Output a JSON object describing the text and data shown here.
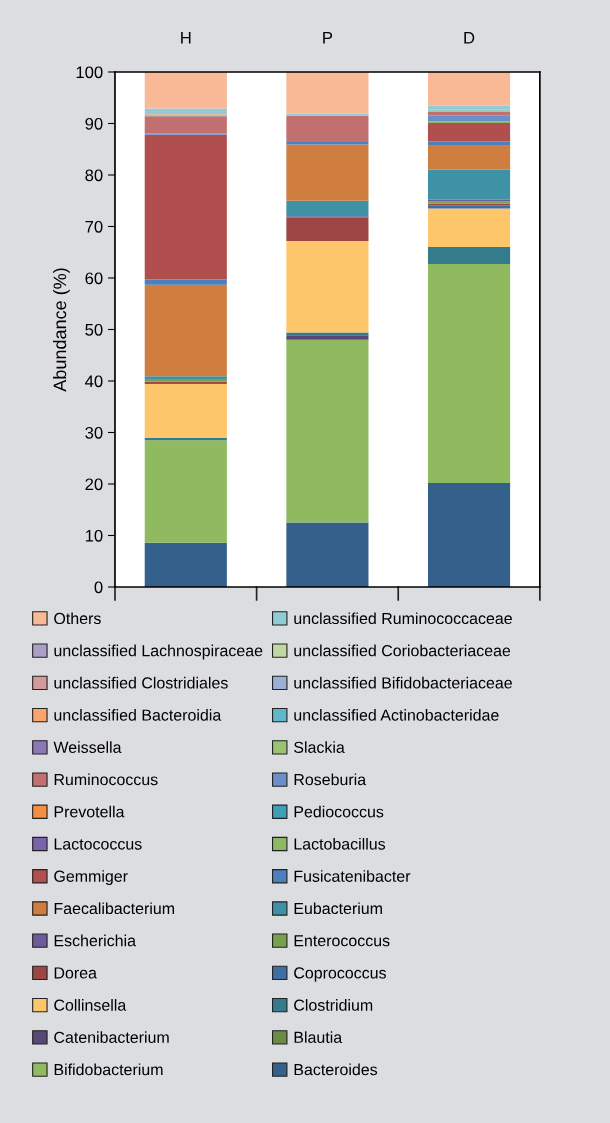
{
  "chart_data": {
    "type": "bar",
    "stacked": true,
    "ylabel": "Abundance (%)",
    "categories": [
      "H",
      "P",
      "D"
    ],
    "ylim": [
      0,
      100
    ],
    "yticks": [
      0,
      10,
      20,
      30,
      40,
      50,
      60,
      70,
      80,
      90,
      100
    ],
    "grid": false,
    "legend": "bottom",
    "series": [
      {
        "name": "Bacteroides",
        "color": "#34618c",
        "values": [
          8.6,
          12.5,
          20.2
        ]
      },
      {
        "name": "Bifidobacterium",
        "color": "#8fba60",
        "values": [
          19.9,
          35.5,
          42.5
        ]
      },
      {
        "name": "Blautia",
        "color": "#6b8c47",
        "values": [
          0,
          0,
          0
        ]
      },
      {
        "name": "Catenibacterium",
        "color": "#574878",
        "values": [
          0,
          0.9,
          0
        ]
      },
      {
        "name": "Clostridium",
        "color": "#347b8c",
        "values": [
          0.5,
          0.5,
          3.3
        ]
      },
      {
        "name": "Collinsella",
        "color": "#fec66a",
        "values": [
          10.4,
          17.8,
          7.5
        ]
      },
      {
        "name": "Coprococcus",
        "color": "#3d6fa3",
        "values": [
          0.2,
          0,
          0.6
        ]
      },
      {
        "name": "Dorea",
        "color": "#9e4545",
        "values": [
          0.3,
          4.5,
          0.3
        ]
      },
      {
        "name": "Enterococcus",
        "color": "#78a04f",
        "values": [
          0.5,
          0,
          0.5
        ]
      },
      {
        "name": "Escherichia",
        "color": "#6c5a99",
        "values": [
          null,
          0.3,
          0.3
        ]
      },
      {
        "name": "Eubacterium",
        "color": "#3d93a5",
        "values": [
          0.5,
          3.0,
          5.8
        ]
      },
      {
        "name": "Faecalibacterium",
        "color": "#cf7e40",
        "values": [
          17.8,
          10.9,
          4.7
        ]
      },
      {
        "name": "Fusicatenibacter",
        "color": "#4d7fbd",
        "values": [
          1.0,
          0.5,
          0.8
        ]
      },
      {
        "name": "Gemmiger",
        "color": "#b14f4f",
        "values": [
          28.1,
          0,
          3.6
        ]
      },
      {
        "name": "Lactobacillus",
        "color": "#8cb963",
        "values": [
          0,
          0,
          0.3
        ]
      },
      {
        "name": "Lactococcus",
        "color": "#7b62ad",
        "values": [
          0,
          0,
          0
        ]
      },
      {
        "name": "Pediococcus",
        "color": "#3ba0b8",
        "values": [
          0,
          0,
          0
        ]
      },
      {
        "name": "Prevotella",
        "color": "#f28e45",
        "values": [
          0,
          0,
          0
        ]
      },
      {
        "name": "Roseburia",
        "color": "#6b8fc8",
        "values": [
          0.3,
          0,
          1.2
        ]
      },
      {
        "name": "Ruminococcus",
        "color": "#c16f6f",
        "values": [
          3.3,
          5.1,
          0.7
        ]
      },
      {
        "name": "Slackia",
        "color": "#9bc26f",
        "values": [
          0,
          0,
          0.2
        ]
      },
      {
        "name": "Weissella",
        "color": "#8c78b5",
        "values": [
          0,
          0,
          0
        ]
      },
      {
        "name": "unclassified Actinobacteridae",
        "color": "#62b6c9",
        "values": [
          0.2,
          0,
          0.2
        ]
      },
      {
        "name": "unclassified Bacteroidia",
        "color": "#f9a46d",
        "values": [
          0.2,
          0,
          0
        ]
      },
      {
        "name": "unclassified Bifidobacteriaceae",
        "color": "#9bb0d4",
        "values": [
          0,
          0,
          0
        ]
      },
      {
        "name": "unclassified Clostridiales",
        "color": "#d29b99",
        "values": [
          null,
          0,
          null
        ]
      },
      {
        "name": "unclassified Coriobacteriaceae",
        "color": "#c0d8a4",
        "values": [
          0,
          0,
          null
        ]
      },
      {
        "name": "unclassified Lachnospiraceae",
        "color": "#ad9ec6",
        "values": [
          0,
          0,
          0
        ]
      },
      {
        "name": "unclassified Ruminococcaceae",
        "color": "#92cbd8",
        "values": [
          1.1,
          0.4,
          0.8
        ]
      },
      {
        "name": "Others",
        "color": "#f9b896",
        "values": [
          7.1,
          8.1,
          6.5
        ]
      }
    ]
  }
}
